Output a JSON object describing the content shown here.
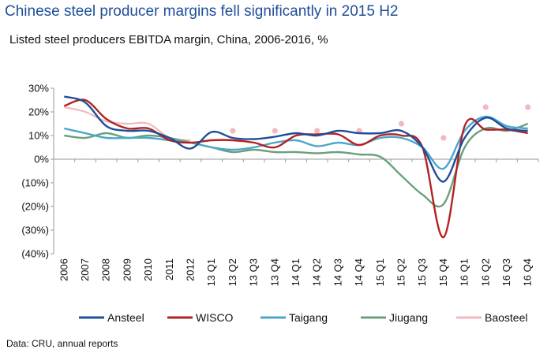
{
  "header": {
    "title": "Chinese steel producer margins fell significantly in 2015 H2",
    "subtitle": "Listed steel producers EBITDA margin, China, 2006-2016, %"
  },
  "footer": {
    "source": "Data: CRU, annual reports"
  },
  "chart_data": {
    "type": "line",
    "title": "Listed steel producers EBITDA margin, China, 2006-2016, %",
    "xlabel": "",
    "ylabel": "",
    "ylim": [
      -40,
      30
    ],
    "y_ticks": [
      30,
      20,
      10,
      0,
      -10,
      -20,
      -30,
      -40
    ],
    "y_tick_labels": [
      "30%",
      "20%",
      "10%",
      "0%",
      "(10%)",
      "(20%)",
      "(30%)",
      "(40%)"
    ],
    "grid": false,
    "legend_position": "bottom",
    "categories": [
      "2006",
      "2007",
      "2008",
      "2009",
      "2010",
      "2011",
      "2012",
      "13 Q1",
      "13 Q2",
      "13 Q3",
      "13 Q4",
      "14 Q1",
      "14 Q2",
      "14 Q3",
      "14 Q4",
      "15 Q1",
      "15 Q2",
      "15 Q3",
      "15 Q4",
      "16 Q1",
      "16 Q2",
      "16 Q3",
      "16 Q4"
    ],
    "series": [
      {
        "name": "Ansteel",
        "color": "#1f4e9a",
        "style": "line",
        "values": [
          26.5,
          24,
          14,
          12,
          12,
          9,
          4.5,
          11.5,
          9,
          8.5,
          9.5,
          11,
          10,
          12,
          11,
          11,
          12,
          5,
          -9.5,
          9,
          17.5,
          13,
          12
        ]
      },
      {
        "name": "WISCO",
        "color": "#b22222",
        "style": "line",
        "values": [
          22.5,
          25,
          17,
          13,
          13,
          8,
          7,
          8,
          8,
          7,
          5,
          10,
          10.5,
          10.5,
          6,
          10,
          10,
          5,
          -33,
          14,
          12.5,
          12.5,
          11
        ]
      },
      {
        "name": "Taigang",
        "color": "#4aa7c9",
        "style": "line",
        "values": [
          13,
          11,
          9,
          9,
          9,
          8,
          7,
          5,
          4,
          5,
          7,
          8,
          5.5,
          7,
          6,
          9,
          9,
          5,
          -4,
          12,
          18,
          14,
          13
        ]
      },
      {
        "name": "Jiugang",
        "color": "#6aa07c",
        "style": "line",
        "values": [
          10,
          9,
          11,
          9,
          10,
          9,
          7,
          5,
          3,
          4,
          3,
          3,
          2.5,
          3,
          2,
          1,
          -7,
          -15,
          -19,
          5,
          13,
          12,
          15
        ]
      },
      {
        "name": "Baosteel",
        "color": "#f2b8bd",
        "style": "line-then-markers",
        "values": [
          22,
          20,
          16,
          15,
          15,
          9,
          8,
          null,
          12,
          null,
          12,
          null,
          12,
          null,
          12,
          null,
          15,
          null,
          9,
          null,
          22,
          null,
          22
        ]
      }
    ]
  }
}
